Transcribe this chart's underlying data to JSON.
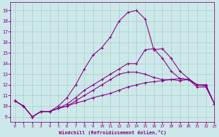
{
  "xlabel": "Windchill (Refroidissement éolien,°C)",
  "ylabel": "",
  "xlim": [
    -0.5,
    23
  ],
  "ylim": [
    8.5,
    19.8
  ],
  "yticks": [
    9,
    10,
    11,
    12,
    13,
    14,
    15,
    16,
    17,
    18,
    19
  ],
  "xticks": [
    0,
    1,
    2,
    3,
    4,
    5,
    6,
    7,
    8,
    9,
    10,
    11,
    12,
    13,
    14,
    15,
    16,
    17,
    18,
    19,
    20,
    21,
    22,
    23
  ],
  "background_color": "#cce8e8",
  "grid_color": "#aacccc",
  "line_color": "#880088",
  "lines": [
    [
      10.5,
      10.0,
      9.0,
      9.5,
      9.5,
      9.8,
      10.0,
      10.3,
      10.5,
      10.8,
      11.0,
      11.2,
      11.5,
      11.8,
      12.0,
      12.2,
      12.3,
      12.4,
      12.5,
      12.6,
      12.5,
      12.0,
      11.9,
      10.2
    ],
    [
      10.5,
      10.0,
      9.0,
      9.5,
      9.5,
      9.8,
      10.0,
      10.5,
      11.0,
      11.5,
      12.0,
      12.5,
      13.0,
      13.2,
      13.2,
      13.0,
      12.7,
      12.5,
      12.5,
      12.4,
      12.5,
      11.8,
      11.8,
      10.2
    ],
    [
      10.5,
      10.0,
      9.0,
      9.5,
      9.5,
      9.8,
      10.2,
      10.8,
      11.5,
      12.0,
      12.5,
      13.0,
      13.5,
      14.0,
      14.0,
      15.3,
      15.4,
      14.5,
      13.3,
      12.6,
      12.5,
      12.0,
      12.0,
      10.2
    ],
    [
      10.5,
      10.0,
      9.0,
      9.5,
      9.5,
      10.0,
      10.8,
      12.0,
      13.5,
      14.8,
      15.5,
      16.5,
      18.0,
      18.8,
      19.0,
      18.2,
      15.3,
      15.4,
      14.5,
      13.3,
      12.6,
      12.0,
      12.0,
      10.2
    ]
  ]
}
